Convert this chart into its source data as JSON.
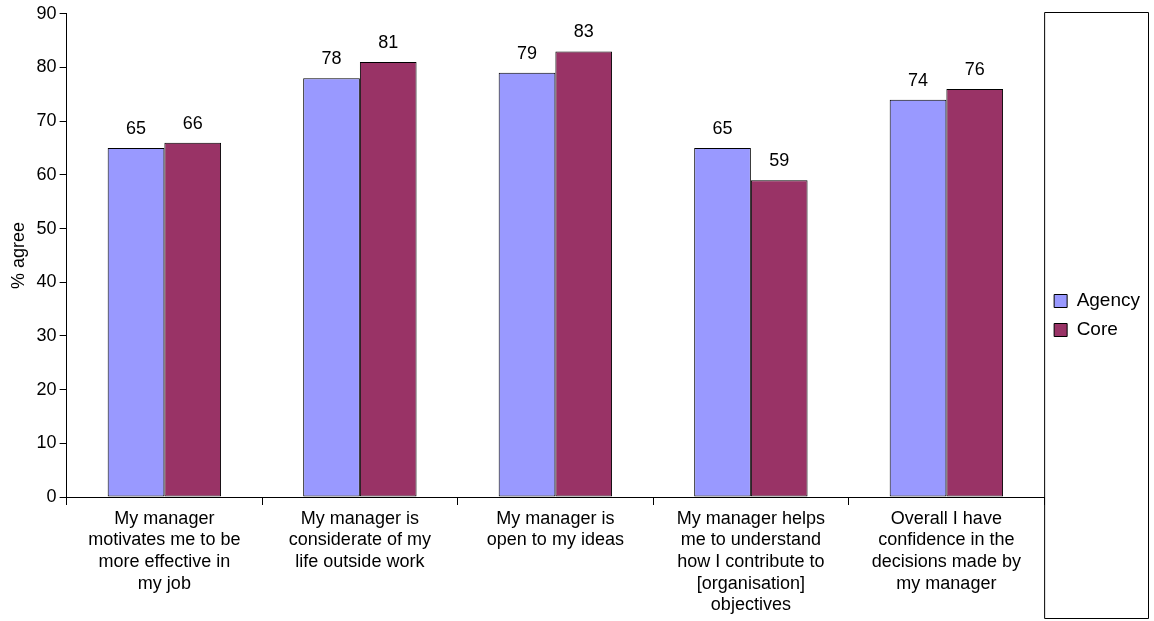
{
  "chart_data": {
    "type": "bar",
    "ylabel": "% agree",
    "categories": [
      "My manager motivates me to be more effective in my job",
      "My manager is considerate of my life outside work",
      "My manager is open to my ideas",
      "My manager helps me to understand how I contribute to [organisation] objectives",
      "Overall I have confidence in the decisions made by my manager"
    ],
    "series": [
      {
        "name": "Agency",
        "color": "#9999ff",
        "values": [
          65,
          78,
          79,
          65,
          74
        ]
      },
      {
        "name": "Core",
        "color": "#993366",
        "values": [
          66,
          81,
          83,
          59,
          76
        ]
      }
    ],
    "ylim": [
      0,
      90
    ],
    "yticks": [
      0,
      10,
      20,
      30,
      40,
      50,
      60,
      70,
      80,
      90
    ],
    "grid": false,
    "legend": "right",
    "data_labels": true
  }
}
